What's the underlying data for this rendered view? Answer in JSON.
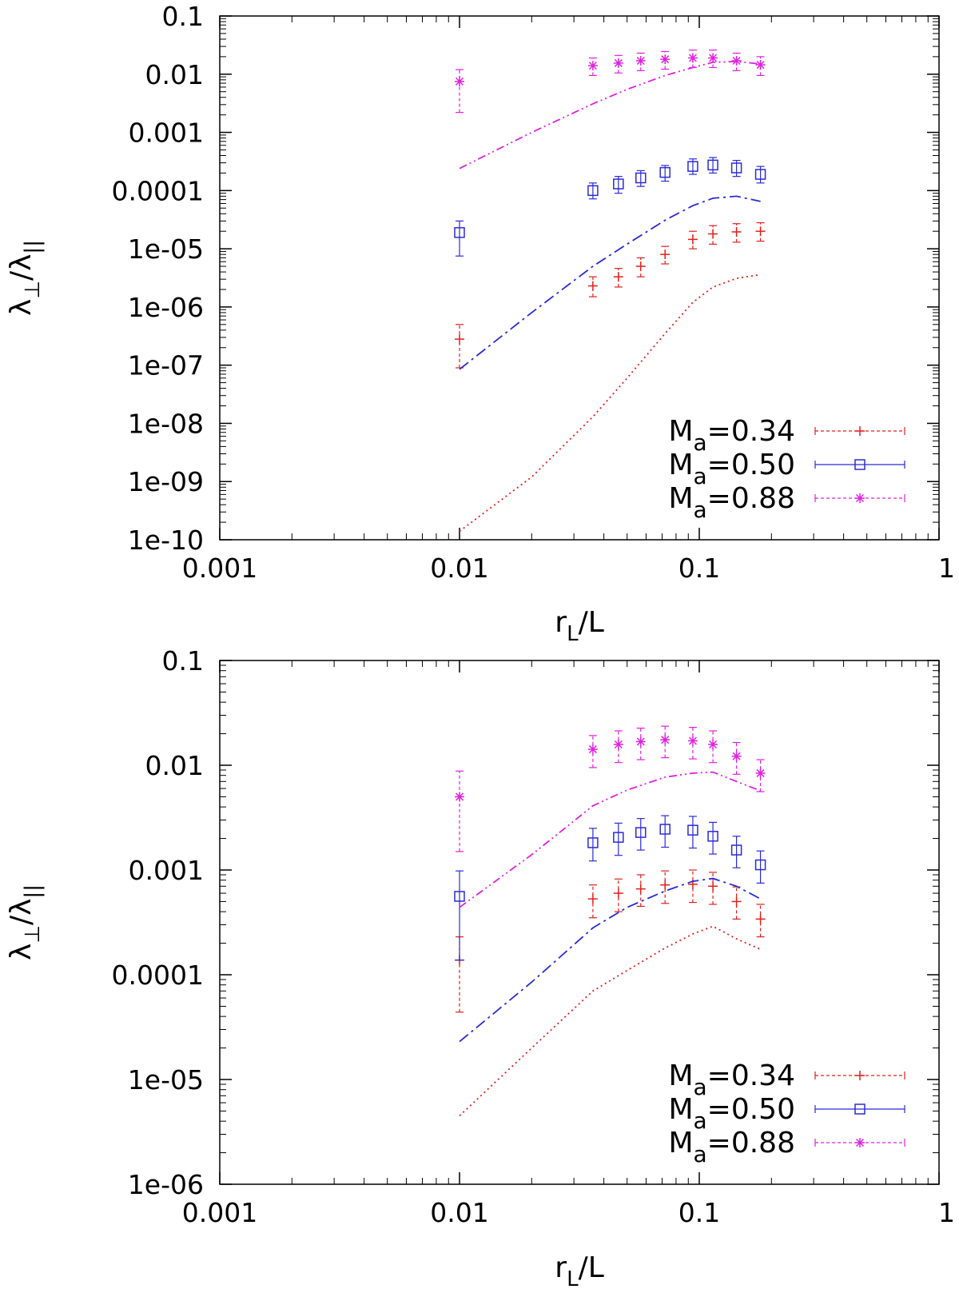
{
  "chart_data": [
    {
      "type": "scatter",
      "xscale": "log",
      "yscale": "log",
      "xlim": [
        0.001,
        1
      ],
      "ylim": [
        1e-10,
        0.1
      ],
      "xlabel": {
        "main": "r",
        "sub": "L",
        "rest": "/L"
      },
      "ylabel": {
        "lam1": "λ",
        "sub1": "⊥",
        "slash": "/",
        "lam2": "λ",
        "sub2": "||"
      },
      "xticks": [
        {
          "v": 0.001,
          "label": "0.001"
        },
        {
          "v": 0.01,
          "label": "0.01"
        },
        {
          "v": 0.1,
          "label": "0.1"
        },
        {
          "v": 1,
          "label": "1"
        }
      ],
      "yticks": [
        {
          "v": 1e-10,
          "label": "1e-10"
        },
        {
          "v": 1e-09,
          "label": "1e-09"
        },
        {
          "v": 1e-08,
          "label": "1e-08"
        },
        {
          "v": 1e-07,
          "label": "1e-07"
        },
        {
          "v": 1e-06,
          "label": "1e-06"
        },
        {
          "v": 1e-05,
          "label": "1e-05"
        },
        {
          "v": 0.0001,
          "label": "0.0001"
        },
        {
          "v": 0.001,
          "label": "0.001"
        },
        {
          "v": 0.01,
          "label": "0.01"
        },
        {
          "v": 0.1,
          "label": "0.1"
        }
      ],
      "legend_position": "bottom-right",
      "series": [
        {
          "name": "M_a=0.34",
          "label_main": "M",
          "label_sub": "a",
          "label_rest": "=0.34",
          "color": "#e0201b",
          "marker": "plus",
          "points": [
            {
              "x": 0.01,
              "y": 2.8e-07,
              "lo": 9e-08,
              "hi": 5e-07
            },
            {
              "x": 0.036,
              "y": 2.3e-06,
              "lo": 1.5e-06,
              "hi": 3.3e-06
            },
            {
              "x": 0.046,
              "y": 3.3e-06,
              "lo": 2.2e-06,
              "hi": 4.6e-06
            },
            {
              "x": 0.057,
              "y": 5e-06,
              "lo": 3.3e-06,
              "hi": 7e-06
            },
            {
              "x": 0.072,
              "y": 8e-06,
              "lo": 5.5e-06,
              "hi": 1.1e-05
            },
            {
              "x": 0.094,
              "y": 1.45e-05,
              "lo": 1e-05,
              "hi": 2e-05
            },
            {
              "x": 0.114,
              "y": 1.8e-05,
              "lo": 1.2e-05,
              "hi": 2.5e-05
            },
            {
              "x": 0.143,
              "y": 1.95e-05,
              "lo": 1.3e-05,
              "hi": 2.7e-05
            },
            {
              "x": 0.18,
              "y": 2e-05,
              "lo": 1.35e-05,
              "hi": 2.8e-05
            }
          ],
          "model": {
            "style": "dotted",
            "x": [
              0.01,
              0.02,
              0.036,
              0.05,
              0.072,
              0.094,
              0.114,
              0.143,
              0.18
            ],
            "y": [
              1.4e-10,
              1.2e-09,
              1.3e-08,
              6e-08,
              3.5e-07,
              1.2e-06,
              2.2e-06,
              3.1e-06,
              3.6e-06
            ]
          }
        },
        {
          "name": "M_a=0.50",
          "label_main": "M",
          "label_sub": "a",
          "label_rest": "=0.50",
          "color": "#2b2bd6",
          "marker": "square",
          "points": [
            {
              "x": 0.01,
              "y": 1.9e-05,
              "lo": 7.5e-06,
              "hi": 3e-05
            },
            {
              "x": 0.036,
              "y": 0.0001,
              "lo": 7.2e-05,
              "hi": 0.000135
            },
            {
              "x": 0.046,
              "y": 0.00013,
              "lo": 9e-05,
              "hi": 0.000175
            },
            {
              "x": 0.057,
              "y": 0.000165,
              "lo": 0.000118,
              "hi": 0.00022
            },
            {
              "x": 0.072,
              "y": 0.000205,
              "lo": 0.000145,
              "hi": 0.00027
            },
            {
              "x": 0.094,
              "y": 0.00026,
              "lo": 0.00019,
              "hi": 0.00035
            },
            {
              "x": 0.114,
              "y": 0.000275,
              "lo": 0.0002,
              "hi": 0.00037
            },
            {
              "x": 0.143,
              "y": 0.000245,
              "lo": 0.000175,
              "hi": 0.00033
            },
            {
              "x": 0.18,
              "y": 0.00019,
              "lo": 0.000135,
              "hi": 0.00026
            }
          ],
          "model": {
            "style": "dashdot",
            "x": [
              0.01,
              0.02,
              0.036,
              0.05,
              0.072,
              0.094,
              0.114,
              0.143,
              0.18
            ],
            "y": [
              8.5e-08,
              8e-07,
              5e-06,
              1.2e-05,
              3.1e-05,
              5.5e-05,
              7.4e-05,
              8e-05,
              6.5e-05
            ]
          }
        },
        {
          "name": "M_a=0.88",
          "label_main": "M",
          "label_sub": "a",
          "label_rest": "=0.88",
          "color": "#e020e0",
          "marker": "star",
          "points": [
            {
              "x": 0.01,
              "y": 0.0075,
              "lo": 0.0022,
              "hi": 0.012
            },
            {
              "x": 0.036,
              "y": 0.014,
              "lo": 0.0095,
              "hi": 0.019
            },
            {
              "x": 0.046,
              "y": 0.0155,
              "lo": 0.0105,
              "hi": 0.021
            },
            {
              "x": 0.057,
              "y": 0.017,
              "lo": 0.0115,
              "hi": 0.023
            },
            {
              "x": 0.072,
              "y": 0.018,
              "lo": 0.0122,
              "hi": 0.0245
            },
            {
              "x": 0.094,
              "y": 0.019,
              "lo": 0.013,
              "hi": 0.026
            },
            {
              "x": 0.114,
              "y": 0.019,
              "lo": 0.013,
              "hi": 0.026
            },
            {
              "x": 0.143,
              "y": 0.017,
              "lo": 0.0115,
              "hi": 0.023
            },
            {
              "x": 0.18,
              "y": 0.0145,
              "lo": 0.0095,
              "hi": 0.02
            }
          ],
          "model": {
            "style": "dashdotdot",
            "x": [
              0.01,
              0.02,
              0.036,
              0.05,
              0.072,
              0.094,
              0.114,
              0.143,
              0.18
            ],
            "y": [
              0.00024,
              0.001,
              0.0031,
              0.0055,
              0.0095,
              0.013,
              0.016,
              0.0165,
              0.015
            ]
          }
        }
      ]
    },
    {
      "type": "scatter",
      "xscale": "log",
      "yscale": "log",
      "xlim": [
        0.001,
        1
      ],
      "ylim": [
        1e-06,
        0.1
      ],
      "xlabel": {
        "main": "r",
        "sub": "L",
        "rest": "/L"
      },
      "ylabel": {
        "lam1": "λ",
        "sub1": "⊥",
        "slash": "/",
        "lam2": "λ",
        "sub2": "||"
      },
      "xticks": [
        {
          "v": 0.001,
          "label": "0.001"
        },
        {
          "v": 0.01,
          "label": "0.01"
        },
        {
          "v": 0.1,
          "label": "0.1"
        },
        {
          "v": 1,
          "label": "1"
        }
      ],
      "yticks": [
        {
          "v": 1e-06,
          "label": "1e-06"
        },
        {
          "v": 1e-05,
          "label": "1e-05"
        },
        {
          "v": 0.0001,
          "label": "0.0001"
        },
        {
          "v": 0.001,
          "label": "0.001"
        },
        {
          "v": 0.01,
          "label": "0.01"
        },
        {
          "v": 0.1,
          "label": "0.1"
        }
      ],
      "legend_position": "bottom-right",
      "series": [
        {
          "name": "M_a=0.34",
          "label_main": "M",
          "label_sub": "a",
          "label_rest": "=0.34",
          "color": "#e0201b",
          "marker": "plus",
          "points": [
            {
              "x": 0.01,
              "y": 0.000138,
              "lo": 4.4e-05,
              "hi": 0.00023
            },
            {
              "x": 0.036,
              "y": 0.00053,
              "lo": 0.00035,
              "hi": 0.00072
            },
            {
              "x": 0.046,
              "y": 0.0006,
              "lo": 0.0004,
              "hi": 0.00082
            },
            {
              "x": 0.057,
              "y": 0.00066,
              "lo": 0.00045,
              "hi": 0.0009
            },
            {
              "x": 0.072,
              "y": 0.00072,
              "lo": 0.00048,
              "hi": 0.00098
            },
            {
              "x": 0.094,
              "y": 0.00073,
              "lo": 0.00049,
              "hi": 0.001
            },
            {
              "x": 0.114,
              "y": 0.0007,
              "lo": 0.00047,
              "hi": 0.00095
            },
            {
              "x": 0.143,
              "y": 0.0005,
              "lo": 0.00034,
              "hi": 0.00069
            },
            {
              "x": 0.18,
              "y": 0.00034,
              "lo": 0.00023,
              "hi": 0.00047
            }
          ],
          "model": {
            "style": "dotted",
            "x": [
              0.01,
              0.02,
              0.036,
              0.05,
              0.072,
              0.094,
              0.114,
              0.143,
              0.18
            ],
            "y": [
              4.5e-06,
              2e-05,
              7e-05,
              0.00011,
              0.00018,
              0.000245,
              0.00029,
              0.00022,
              0.000175
            ]
          }
        },
        {
          "name": "M_a=0.50",
          "label_main": "M",
          "label_sub": "a",
          "label_rest": "=0.50",
          "color": "#2b2bd6",
          "marker": "square",
          "points": [
            {
              "x": 0.01,
              "y": 0.00056,
              "lo": 0.000138,
              "hi": 0.00098
            },
            {
              "x": 0.036,
              "y": 0.00182,
              "lo": 0.00122,
              "hi": 0.0025
            },
            {
              "x": 0.046,
              "y": 0.00205,
              "lo": 0.00138,
              "hi": 0.0028
            },
            {
              "x": 0.057,
              "y": 0.00228,
              "lo": 0.00155,
              "hi": 0.0031
            },
            {
              "x": 0.072,
              "y": 0.00245,
              "lo": 0.00165,
              "hi": 0.0033
            },
            {
              "x": 0.094,
              "y": 0.0024,
              "lo": 0.00162,
              "hi": 0.00325
            },
            {
              "x": 0.114,
              "y": 0.0021,
              "lo": 0.00142,
              "hi": 0.00285
            },
            {
              "x": 0.143,
              "y": 0.00155,
              "lo": 0.00105,
              "hi": 0.0021
            },
            {
              "x": 0.18,
              "y": 0.00112,
              "lo": 0.00075,
              "hi": 0.00152
            }
          ],
          "model": {
            "style": "dashdot",
            "x": [
              0.01,
              0.02,
              0.036,
              0.05,
              0.072,
              0.094,
              0.114,
              0.143,
              0.18
            ],
            "y": [
              2.3e-05,
              8.5e-05,
              0.00028,
              0.00044,
              0.00063,
              0.00078,
              0.00083,
              0.0007,
              0.00053
            ]
          }
        },
        {
          "name": "M_a=0.88",
          "label_main": "M",
          "label_sub": "a",
          "label_rest": "=0.88",
          "color": "#e020e0",
          "marker": "star",
          "points": [
            {
              "x": 0.01,
              "y": 0.005,
              "lo": 0.0015,
              "hi": 0.0088
            },
            {
              "x": 0.036,
              "y": 0.0142,
              "lo": 0.0095,
              "hi": 0.0192
            },
            {
              "x": 0.046,
              "y": 0.0158,
              "lo": 0.0106,
              "hi": 0.0213
            },
            {
              "x": 0.057,
              "y": 0.0168,
              "lo": 0.0113,
              "hi": 0.0226
            },
            {
              "x": 0.072,
              "y": 0.0175,
              "lo": 0.0118,
              "hi": 0.0236
            },
            {
              "x": 0.094,
              "y": 0.0171,
              "lo": 0.0115,
              "hi": 0.023
            },
            {
              "x": 0.114,
              "y": 0.0158,
              "lo": 0.0106,
              "hi": 0.0213
            },
            {
              "x": 0.143,
              "y": 0.0122,
              "lo": 0.0082,
              "hi": 0.0165
            },
            {
              "x": 0.18,
              "y": 0.0084,
              "lo": 0.0056,
              "hi": 0.0113
            }
          ],
          "model": {
            "style": "dashdotdot",
            "x": [
              0.01,
              0.02,
              0.036,
              0.05,
              0.072,
              0.094,
              0.114,
              0.143,
              0.18
            ],
            "y": [
              0.00044,
              0.0014,
              0.0041,
              0.0058,
              0.0077,
              0.0084,
              0.0086,
              0.007,
              0.0057
            ]
          }
        }
      ]
    }
  ]
}
